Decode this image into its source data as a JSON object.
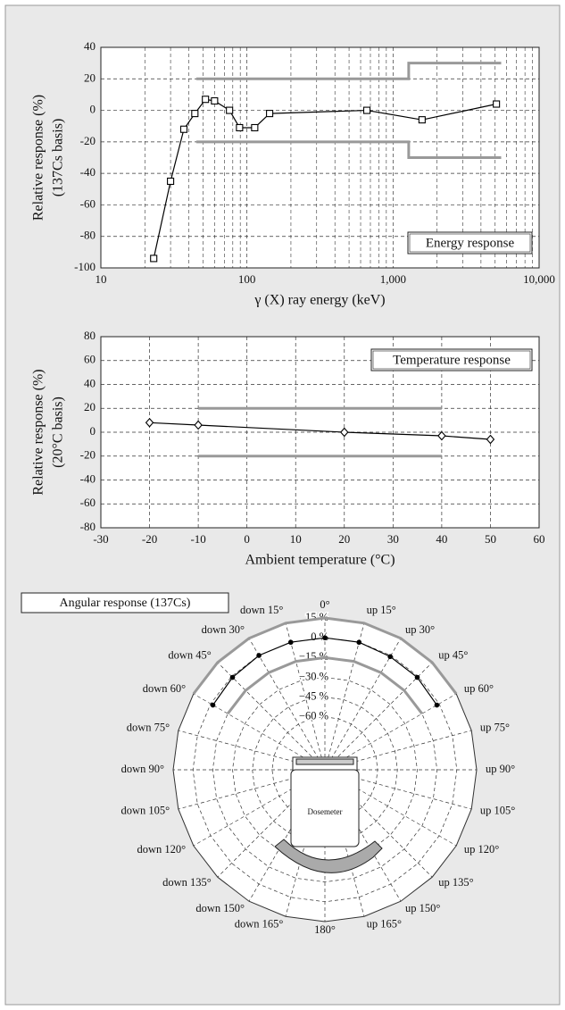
{
  "chart_data": [
    {
      "type": "line",
      "xscale": "log",
      "grid": true,
      "annotation": "Energy response",
      "annotation_corner": "bottom-right",
      "x_label": "γ (X) ray energy (keV)",
      "y_label": [
        "Relative response (%)",
        "(137Cs basis)"
      ],
      "x": [
        23,
        30,
        37,
        44,
        52,
        60,
        76,
        89,
        113,
        143,
        662,
        1580,
        5100
      ],
      "values": [
        -94,
        -45,
        -12,
        -2,
        7,
        6,
        0,
        -11,
        -11,
        -2,
        0,
        -6,
        4
      ],
      "color": "#000000",
      "marker": "square",
      "limits": [
        {
          "x": [
            45,
            1280,
            1280,
            5500
          ],
          "y": [
            20,
            20,
            30,
            30
          ]
        },
        {
          "x": [
            45,
            1280,
            1280,
            5500
          ],
          "y": [
            -20,
            -20,
            -30,
            -30
          ]
        }
      ],
      "limit_color": "#999999",
      "xlim": [
        10,
        10000
      ],
      "ylim": [
        -100,
        40
      ],
      "xticks": [
        10,
        100,
        {
          "value": 1000,
          "label": "1,000"
        },
        {
          "value": 10000,
          "label": "10,000"
        }
      ],
      "yticks": [
        -100,
        -80,
        -60,
        -40,
        -20,
        0,
        20,
        40
      ]
    },
    {
      "type": "line",
      "xscale": "linear",
      "grid": true,
      "annotation": "Temperature response",
      "annotation_corner": "top-right",
      "x_label": "Ambient temperature (°C)",
      "y_label": [
        "Relative response (%)",
        "(20°C basis)"
      ],
      "x": [
        -20,
        -10,
        20,
        40,
        50
      ],
      "values": [
        8,
        6,
        0,
        -3,
        -6
      ],
      "color": "#000000",
      "marker": "diamond",
      "limits": [
        {
          "x": [
            -10,
            40
          ],
          "y": [
            20,
            20
          ]
        },
        {
          "x": [
            -10,
            40
          ],
          "y": [
            -20,
            -20
          ]
        }
      ],
      "limit_color": "#999999",
      "xlim": [
        -30,
        60
      ],
      "ylim": [
        -80,
        80
      ],
      "xticks": [
        -30,
        -20,
        -10,
        0,
        10,
        20,
        30,
        40,
        50,
        60
      ],
      "yticks": [
        -80,
        -60,
        -40,
        -20,
        0,
        20,
        40,
        60,
        80
      ]
    },
    {
      "type": "polar",
      "title": "Angular response (137Cs)",
      "device_label": "Dosemeter",
      "angles": [
        -60,
        -45,
        -30,
        -15,
        0,
        15,
        30,
        45,
        60
      ],
      "values": [
        -2,
        -1,
        0,
        0,
        0,
        0,
        -1,
        -1,
        -2
      ],
      "color": "#000000",
      "limits": [
        {
          "angles": [
            -60,
            60
          ],
          "values": [
            15,
            15
          ]
        },
        {
          "angles": [
            -60,
            60
          ],
          "values": [
            -15,
            -15
          ]
        }
      ],
      "limit_color": "#999999",
      "angle_labels": [
        "0°",
        "up 15°",
        "up 30°",
        "up 45°",
        "up 60°",
        "up 75°",
        "up 90°",
        "up 105°",
        "up 120°",
        "up 135°",
        "up 150°",
        "up 165°",
        "180°",
        "down 165°",
        "down 150°",
        "down 135°",
        "down 120°",
        "down 105°",
        "down 90°",
        "down 75°",
        "down 60°",
        "down 45°",
        "down 30°",
        "down 15°"
      ],
      "rlim": [
        -100,
        15
      ],
      "rticks": [
        {
          "value": 15,
          "label": "15 %"
        },
        {
          "value": 0,
          "label": "0 %"
        },
        {
          "value": -15,
          "label": "−15 %"
        },
        {
          "value": -30,
          "label": "−30 %"
        },
        {
          "value": -45,
          "label": "−45 %"
        },
        {
          "value": -60,
          "label": "−60 %"
        }
      ]
    }
  ]
}
